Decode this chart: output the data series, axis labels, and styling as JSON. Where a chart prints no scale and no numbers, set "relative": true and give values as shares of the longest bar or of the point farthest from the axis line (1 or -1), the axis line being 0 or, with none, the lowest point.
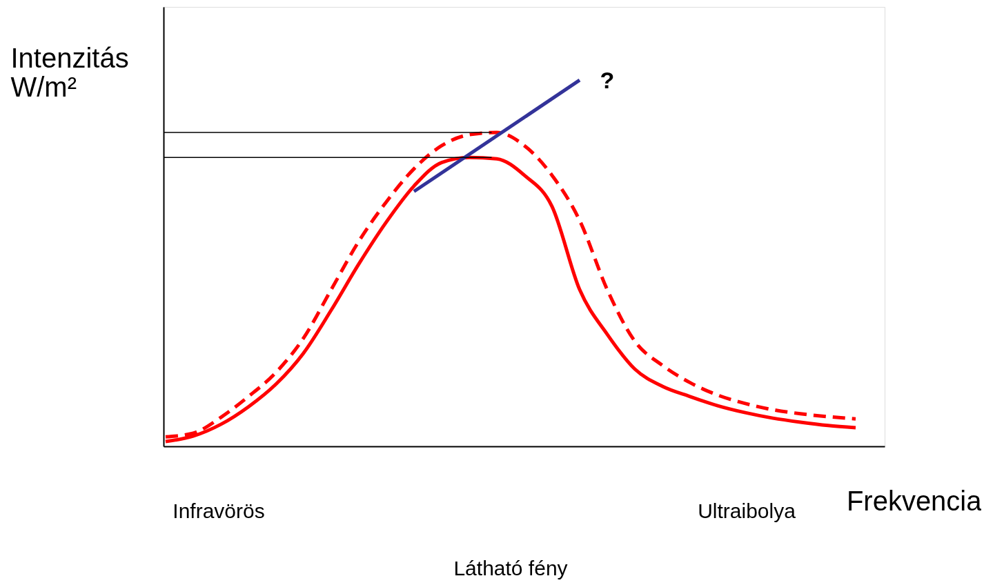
{
  "chart_data": {
    "type": "line",
    "relative": true,
    "xlabel": "Frekvencia",
    "ylabel": "Intenzitás W/m²",
    "categories": [
      null,
      null,
      null,
      null,
      null,
      null,
      null,
      null,
      null,
      null,
      null,
      null,
      null,
      null,
      null,
      null,
      null,
      null,
      null,
      null,
      null,
      null,
      null,
      null,
      null,
      null,
      null
    ],
    "series": [
      {
        "color": "#ff0000",
        "line_style": "solid",
        "values": [
          0.013,
          0.028,
          0.06,
          0.108,
          0.17,
          0.255,
          0.372,
          0.498,
          0.613,
          0.711,
          0.775,
          0.789,
          0.785,
          0.74,
          0.655,
          0.428,
          0.306,
          0.211,
          0.164,
          0.136,
          0.111,
          0.092,
          0.077,
          0.066,
          0.057,
          0.051,
          null
        ]
      },
      {
        "color": "#ff0000",
        "line_style": "dashed",
        "values": [
          0.026,
          0.036,
          0.079,
          0.136,
          0.202,
          0.296,
          0.428,
          0.56,
          0.668,
          0.758,
          0.821,
          0.851,
          0.857,
          0.821,
          0.74,
          0.617,
          0.428,
          0.287,
          0.221,
          0.174,
          0.14,
          0.117,
          0.1,
          0.089,
          0.081,
          0.075,
          null
        ]
      },
      {
        "color": "#333399",
        "line_style": "solid",
        "values": [
          null,
          null,
          null,
          null,
          null,
          null,
          null,
          null,
          null,
          0.696,
          null,
          null,
          null,
          null,
          null,
          1.0,
          null,
          null,
          null,
          null,
          null,
          null,
          null,
          null,
          null,
          null,
          null
        ]
      }
    ],
    "ref_lines": [
      {
        "axis": "y",
        "value": 0.857,
        "color": "#000000"
      },
      {
        "axis": "y",
        "value": 0.789,
        "color": "#000000"
      }
    ],
    "annotations": [
      "?",
      "Infravörös",
      "Ultraibolya",
      "Látható fény"
    ],
    "marker": "none"
  }
}
